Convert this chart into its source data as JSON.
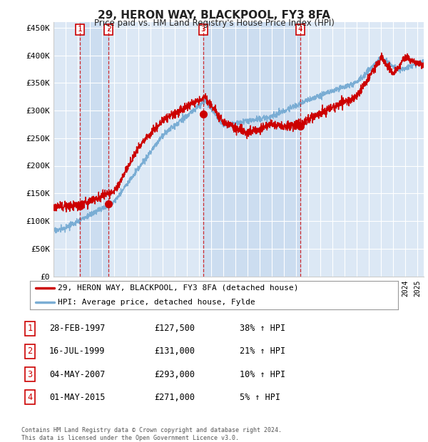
{
  "title": "29, HERON WAY, BLACKPOOL, FY3 8FA",
  "subtitle": "Price paid vs. HM Land Registry's House Price Index (HPI)",
  "background_color": "#ffffff",
  "plot_bg_color": "#dce8f5",
  "grid_color": "#ffffff",
  "sale_color": "#cc0000",
  "hpi_color": "#7aadd4",
  "shade_color": "#ccddf0",
  "ylim": [
    0,
    460000
  ],
  "yticks": [
    0,
    50000,
    100000,
    150000,
    200000,
    250000,
    300000,
    350000,
    400000,
    450000
  ],
  "ytick_labels": [
    "£0",
    "£50K",
    "£100K",
    "£150K",
    "£200K",
    "£250K",
    "£300K",
    "£350K",
    "£400K",
    "£450K"
  ],
  "sales": [
    {
      "date_num": 1997.16,
      "price": 127500,
      "label": "1"
    },
    {
      "date_num": 1999.54,
      "price": 131000,
      "label": "2"
    },
    {
      "date_num": 2007.34,
      "price": 293000,
      "label": "3"
    },
    {
      "date_num": 2015.33,
      "price": 271000,
      "label": "4"
    }
  ],
  "table_rows": [
    {
      "num": "1",
      "date": "28-FEB-1997",
      "price": "£127,500",
      "pct": "38% ↑ HPI"
    },
    {
      "num": "2",
      "date": "16-JUL-1999",
      "price": "£131,000",
      "pct": "21% ↑ HPI"
    },
    {
      "num": "3",
      "date": "04-MAY-2007",
      "price": "£293,000",
      "pct": "10% ↑ HPI"
    },
    {
      "num": "4",
      "date": "01-MAY-2015",
      "price": "£271,000",
      "pct": "5% ↑ HPI"
    }
  ],
  "legend_sale": "29, HERON WAY, BLACKPOOL, FY3 8FA (detached house)",
  "legend_hpi": "HPI: Average price, detached house, Fylde",
  "footnote": "Contains HM Land Registry data © Crown copyright and database right 2024.\nThis data is licensed under the Open Government Licence v3.0.",
  "xmin": 1995.0,
  "xmax": 2025.5
}
